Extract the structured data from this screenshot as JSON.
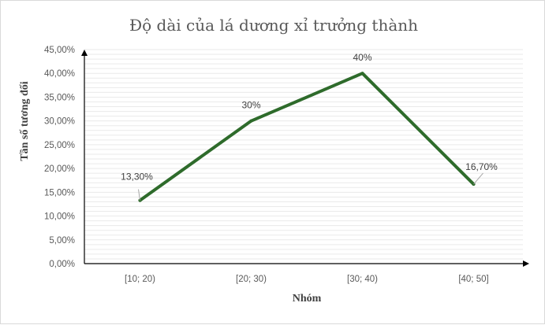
{
  "chart_data": {
    "type": "line",
    "title": "Độ dài của lá dương xỉ trưởng thành",
    "xlabel": "Nhóm",
    "ylabel": "Tần số tương đối",
    "categories": [
      "[10; 20)",
      "[20; 30)",
      "[30; 40)",
      "[40; 50]"
    ],
    "values": [
      13.3,
      30,
      40,
      16.7
    ],
    "data_labels": [
      "13,30%",
      "30%",
      "40%",
      "16,70%"
    ],
    "ylim": [
      0,
      45
    ],
    "yticks": [
      "0,00%",
      "5,00%",
      "10,00%",
      "15,00%",
      "20,00%",
      "25,00%",
      "30,00%",
      "35,00%",
      "40,00%",
      "45,00%"
    ],
    "ytick_values": [
      0,
      5,
      10,
      15,
      20,
      25,
      30,
      35,
      40,
      45
    ],
    "line_color": "#2e6b2b",
    "grid": true,
    "legend": "none"
  }
}
